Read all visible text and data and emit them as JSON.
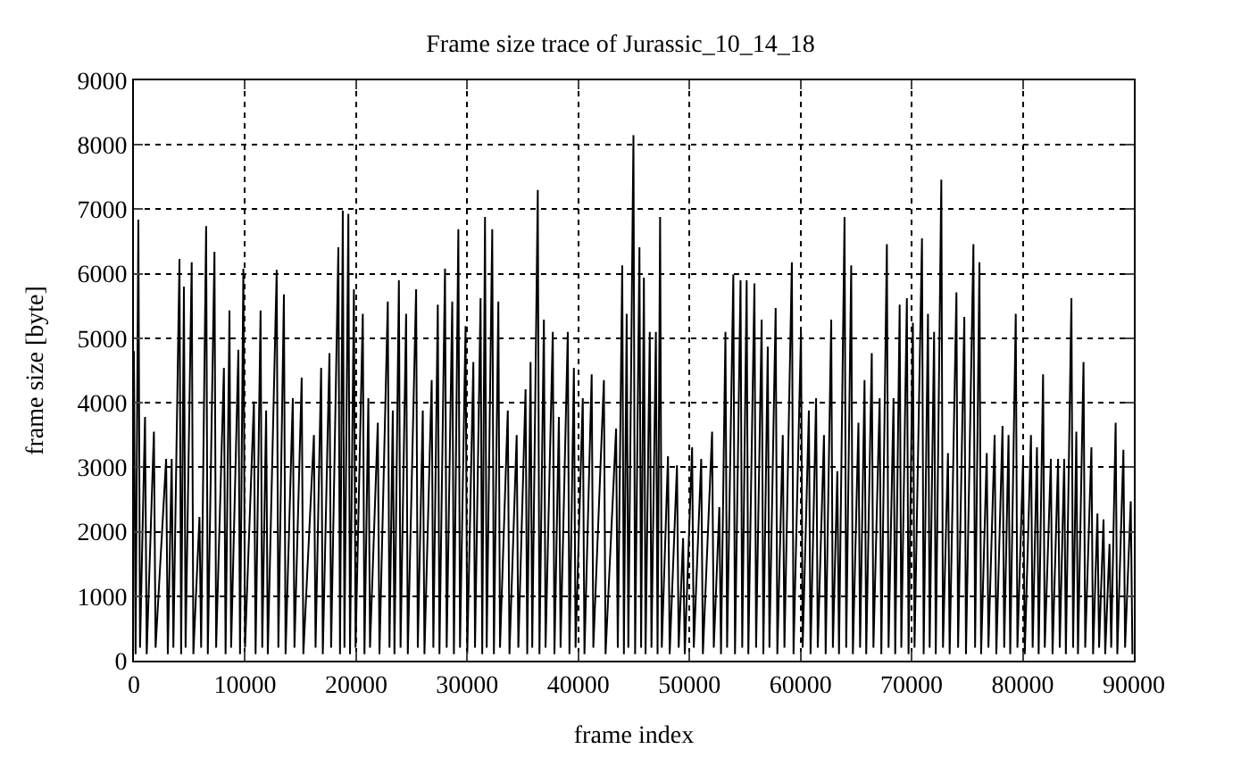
{
  "chart_data": {
    "type": "line",
    "title": "Frame size trace of Jurassic_10_14_18",
    "xlabel": "frame index",
    "ylabel": "frame size [byte]",
    "x": [
      0,
      150,
      400,
      550,
      1000,
      1150,
      1800,
      1950,
      2900,
      3050,
      3400,
      3550,
      4100,
      4250,
      4500,
      4650,
      5200,
      5350,
      5900,
      6050,
      6500,
      6650,
      7250,
      7400,
      8100,
      8250,
      8600,
      8750,
      9400,
      9550,
      9850,
      10000,
      10800,
      10950,
      11400,
      11550,
      11900,
      12050,
      12850,
      13000,
      13500,
      13650,
      14300,
      14450,
      15100,
      15250,
      16200,
      16350,
      16850,
      17000,
      17600,
      17750,
      18400,
      18550,
      18800,
      18950,
      19300,
      19450,
      19800,
      19950,
      20600,
      20750,
      21100,
      21250,
      21950,
      22100,
      22850,
      23000,
      23300,
      23450,
      23850,
      24000,
      24500,
      24650,
      25400,
      25550,
      26000,
      26150,
      26800,
      26950,
      27350,
      27500,
      28000,
      28150,
      28650,
      28800,
      29200,
      29350,
      29850,
      30000,
      30550,
      30700,
      31200,
      31350,
      31600,
      31750,
      32250,
      32400,
      32800,
      32950,
      33650,
      33800,
      34450,
      34600,
      35250,
      35400,
      35700,
      35850,
      36350,
      36500,
      36900,
      37050,
      37700,
      37850,
      38250,
      38400,
      39050,
      39200,
      39600,
      39750,
      40400,
      40550,
      41200,
      41350,
      42300,
      42450,
      43400,
      43550,
      43950,
      44100,
      44350,
      44500,
      44960,
      45110,
      45500,
      45650,
      45900,
      46050,
      46430,
      46580,
      46980,
      47130,
      47360,
      47510,
      48070,
      48220,
      48880,
      49030,
      49430,
      49580,
      50240,
      50390,
      51060,
      51210,
      52040,
      52190,
      52690,
      52840,
      53240,
      53390,
      53950,
      54100,
      54600,
      54750,
      55150,
      55300,
      55850,
      56000,
      56500,
      56650,
      57050,
      57200,
      57760,
      57910,
      58400,
      58550,
      59220,
      59370,
      60040,
      60190,
      60750,
      60900,
      61400,
      61550,
      62110,
      62260,
      62760,
      62910,
      63310,
      63460,
      63960,
      64110,
      64560,
      64710,
      65210,
      65360,
      65760,
      65910,
      66410,
      66560,
      67120,
      67270,
      67770,
      67920,
      68370,
      68520,
      68920,
      69070,
      69570,
      69720,
      70110,
      70260,
      70930,
      71080,
      71470,
      71620,
      72020,
      72170,
      72670,
      72820,
      73270,
      73420,
      74030,
      74180,
      74740,
      74890,
      75560,
      75710,
      76100,
      76250,
      76760,
      76910,
      77470,
      77620,
      78180,
      78330,
      78720,
      78870,
      79370,
      79520,
      80030,
      80180,
      80740,
      80890,
      81280,
      81430,
      81830,
      81980,
      82530,
      82680,
      83180,
      83330,
      83730,
      83880,
      84380,
      84530,
      84820,
      84970,
      85470,
      85620,
      86180,
      86330,
      86720,
      86870,
      87270,
      87420,
      87810,
      87960,
      88360,
      88510,
      89060,
      89210,
      89720,
      89870
    ],
    "values": [
      4800,
      100,
      6840,
      200,
      3780,
      100,
      3550,
      200,
      3130,
      100,
      3130,
      200,
      6230,
      100,
      5800,
      200,
      6180,
      100,
      2230,
      200,
      6740,
      100,
      6340,
      200,
      4540,
      100,
      5430,
      200,
      4820,
      100,
      6080,
      200,
      4020,
      100,
      5430,
      200,
      3880,
      100,
      6060,
      200,
      5680,
      100,
      4070,
      200,
      4390,
      100,
      3500,
      200,
      4540,
      100,
      4770,
      200,
      6410,
      100,
      6980,
      200,
      6930,
      100,
      5760,
      200,
      5380,
      100,
      4070,
      200,
      3690,
      100,
      5570,
      200,
      3880,
      100,
      5900,
      200,
      5380,
      100,
      5760,
      200,
      3880,
      100,
      4350,
      200,
      5520,
      100,
      6080,
      200,
      5570,
      100,
      6690,
      200,
      5190,
      100,
      4630,
      200,
      5620,
      100,
      6880,
      200,
      6690,
      100,
      5570,
      200,
      3880,
      100,
      3500,
      200,
      4210,
      100,
      4630,
      200,
      7300,
      100,
      5290,
      200,
      5100,
      100,
      3780,
      200,
      5100,
      100,
      4540,
      200,
      4070,
      100,
      4440,
      200,
      4350,
      100,
      3600,
      200,
      6130,
      100,
      5380,
      200,
      8150,
      100,
      6410,
      200,
      5940,
      100,
      5100,
      200,
      5100,
      100,
      6880,
      200,
      3170,
      100,
      3030,
      200,
      1900,
      100,
      3310,
      200,
      3130,
      100,
      3550,
      200,
      2380,
      100,
      5100,
      200,
      5990,
      100,
      5900,
      200,
      5900,
      100,
      5850,
      200,
      5290,
      100,
      4870,
      200,
      5470,
      100,
      3500,
      200,
      6180,
      100,
      5100,
      200,
      3880,
      100,
      4070,
      200,
      3500,
      100,
      5290,
      200,
      2940,
      100,
      6880,
      200,
      6130,
      100,
      3690,
      200,
      4350,
      100,
      4770,
      200,
      4070,
      100,
      6460,
      200,
      4070,
      100,
      5520,
      200,
      5620,
      100,
      5240,
      200,
      6550,
      100,
      5380,
      200,
      5100,
      100,
      7460,
      200,
      3220,
      100,
      5710,
      200,
      5330,
      100,
      6460,
      200,
      6180,
      100,
      3220,
      200,
      3500,
      100,
      3640,
      200,
      3500,
      100,
      5380,
      200,
      3130,
      100,
      3500,
      200,
      3310,
      100,
      4440,
      200,
      3130,
      100,
      3130,
      200,
      3130,
      100,
      5620,
      200,
      3550,
      100,
      4630,
      200,
      3310,
      100,
      2280,
      200,
      2190,
      100,
      1810,
      200,
      3690,
      100,
      3270,
      200,
      2470,
      100
    ],
    "color": "#000000",
    "xlim": [
      0,
      90000
    ],
    "ylim": [
      0,
      9000
    ],
    "xticks": [
      0,
      10000,
      20000,
      30000,
      40000,
      50000,
      60000,
      70000,
      80000,
      90000
    ],
    "yticks": [
      0,
      1000,
      2000,
      3000,
      4000,
      5000,
      6000,
      7000,
      8000,
      9000
    ],
    "grid": true,
    "legend": false,
    "line_style": "solid"
  }
}
